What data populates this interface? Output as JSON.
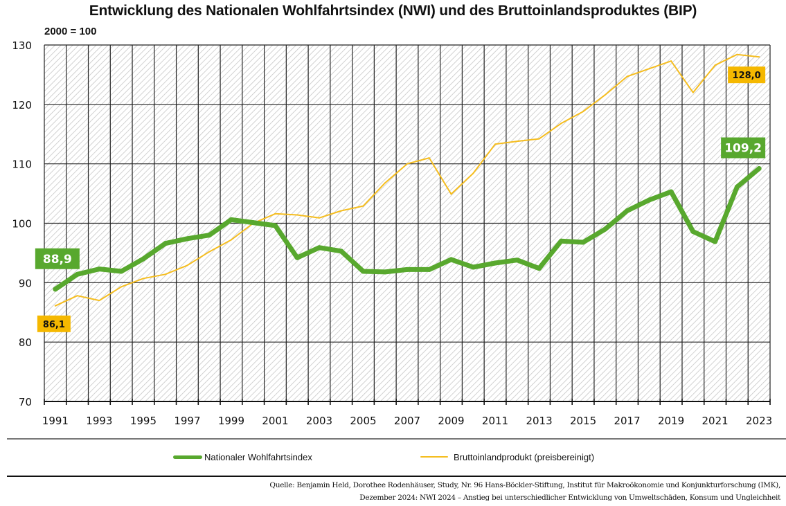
{
  "colors": {
    "nwi": "#58a82e",
    "bip": "#f5bd1f",
    "bip_label_bg": "#f5b800",
    "grid": "#222222",
    "hatch": "#c8c8c8"
  },
  "legend": {
    "nwi_label": "Nationaler Wohlfahrtsindex",
    "bip_label": "Bruttoinlandprodukt (preisbereinigt)"
  },
  "source": {
    "line1": "Quelle: Benjamin Held, Dorothee Rodenhäuser, Study, Nr. 96 Hans-Böckler-Stiftung, Institut für Makroökonomie und Konjunkturforschung (IMK),",
    "line2": "Dezember 2024: NWI 2024 – Anstieg bei unterschiedlicher Entwicklung von Umweltschäden, Konsum und Ungleichheit"
  },
  "chart_data": {
    "type": "line",
    "title": "Entwicklung des Nationalen Wohlfahrtsindex (NWI) und des Bruttoinlandsproduktes (BIP)",
    "subtitle": "2000 = 100",
    "xlabel": "",
    "ylabel": "2000 = 100",
    "ylim": [
      70,
      130
    ],
    "yticks": [
      70,
      80,
      90,
      100,
      110,
      120,
      130
    ],
    "grid": true,
    "legend_position": "bottom",
    "x": [
      1991,
      1992,
      1993,
      1994,
      1995,
      1996,
      1997,
      1998,
      1999,
      2000,
      2001,
      2002,
      2003,
      2004,
      2005,
      2006,
      2007,
      2008,
      2009,
      2010,
      2011,
      2012,
      2013,
      2014,
      2015,
      2016,
      2017,
      2018,
      2019,
      2020,
      2021,
      2022,
      2023
    ],
    "xtick_labels": [
      "1991",
      "1993",
      "1995",
      "1997",
      "1999",
      "2001",
      "2003",
      "2005",
      "2007",
      "2009",
      "2011",
      "2013",
      "2015",
      "2017",
      "2019",
      "2021",
      "2023"
    ],
    "series": [
      {
        "name": "Nationaler Wohlfahrtsindex",
        "key": "nwi",
        "values": [
          88.9,
          91.4,
          92.3,
          91.9,
          94.0,
          96.6,
          97.4,
          98.0,
          100.6,
          100.1,
          99.6,
          94.2,
          95.9,
          95.3,
          91.9,
          91.8,
          92.2,
          92.2,
          93.9,
          92.6,
          93.3,
          93.8,
          92.4,
          97.0,
          96.8,
          99.0,
          102.1,
          103.9,
          105.3,
          98.6,
          96.9,
          106.1,
          109.2
        ],
        "annotations": [
          {
            "x": 1991,
            "label": "88,9"
          },
          {
            "x": 2023,
            "label": "109,2"
          }
        ]
      },
      {
        "name": "Bruttoinlandprodukt (preisbereinigt)",
        "key": "bip",
        "values": [
          86.1,
          87.8,
          87.0,
          89.3,
          90.7,
          91.4,
          92.9,
          95.2,
          97.2,
          100.0,
          101.6,
          101.4,
          100.9,
          102.1,
          102.9,
          106.8,
          110.0,
          111.0,
          104.9,
          108.4,
          113.3,
          113.8,
          114.2,
          116.8,
          118.8,
          121.6,
          124.7,
          126.0,
          127.3,
          122.0,
          126.6,
          128.4,
          128.0
        ],
        "annotations": [
          {
            "x": 1991,
            "label": "86,1"
          },
          {
            "x": 2023,
            "label": "128,0"
          }
        ]
      }
    ]
  }
}
